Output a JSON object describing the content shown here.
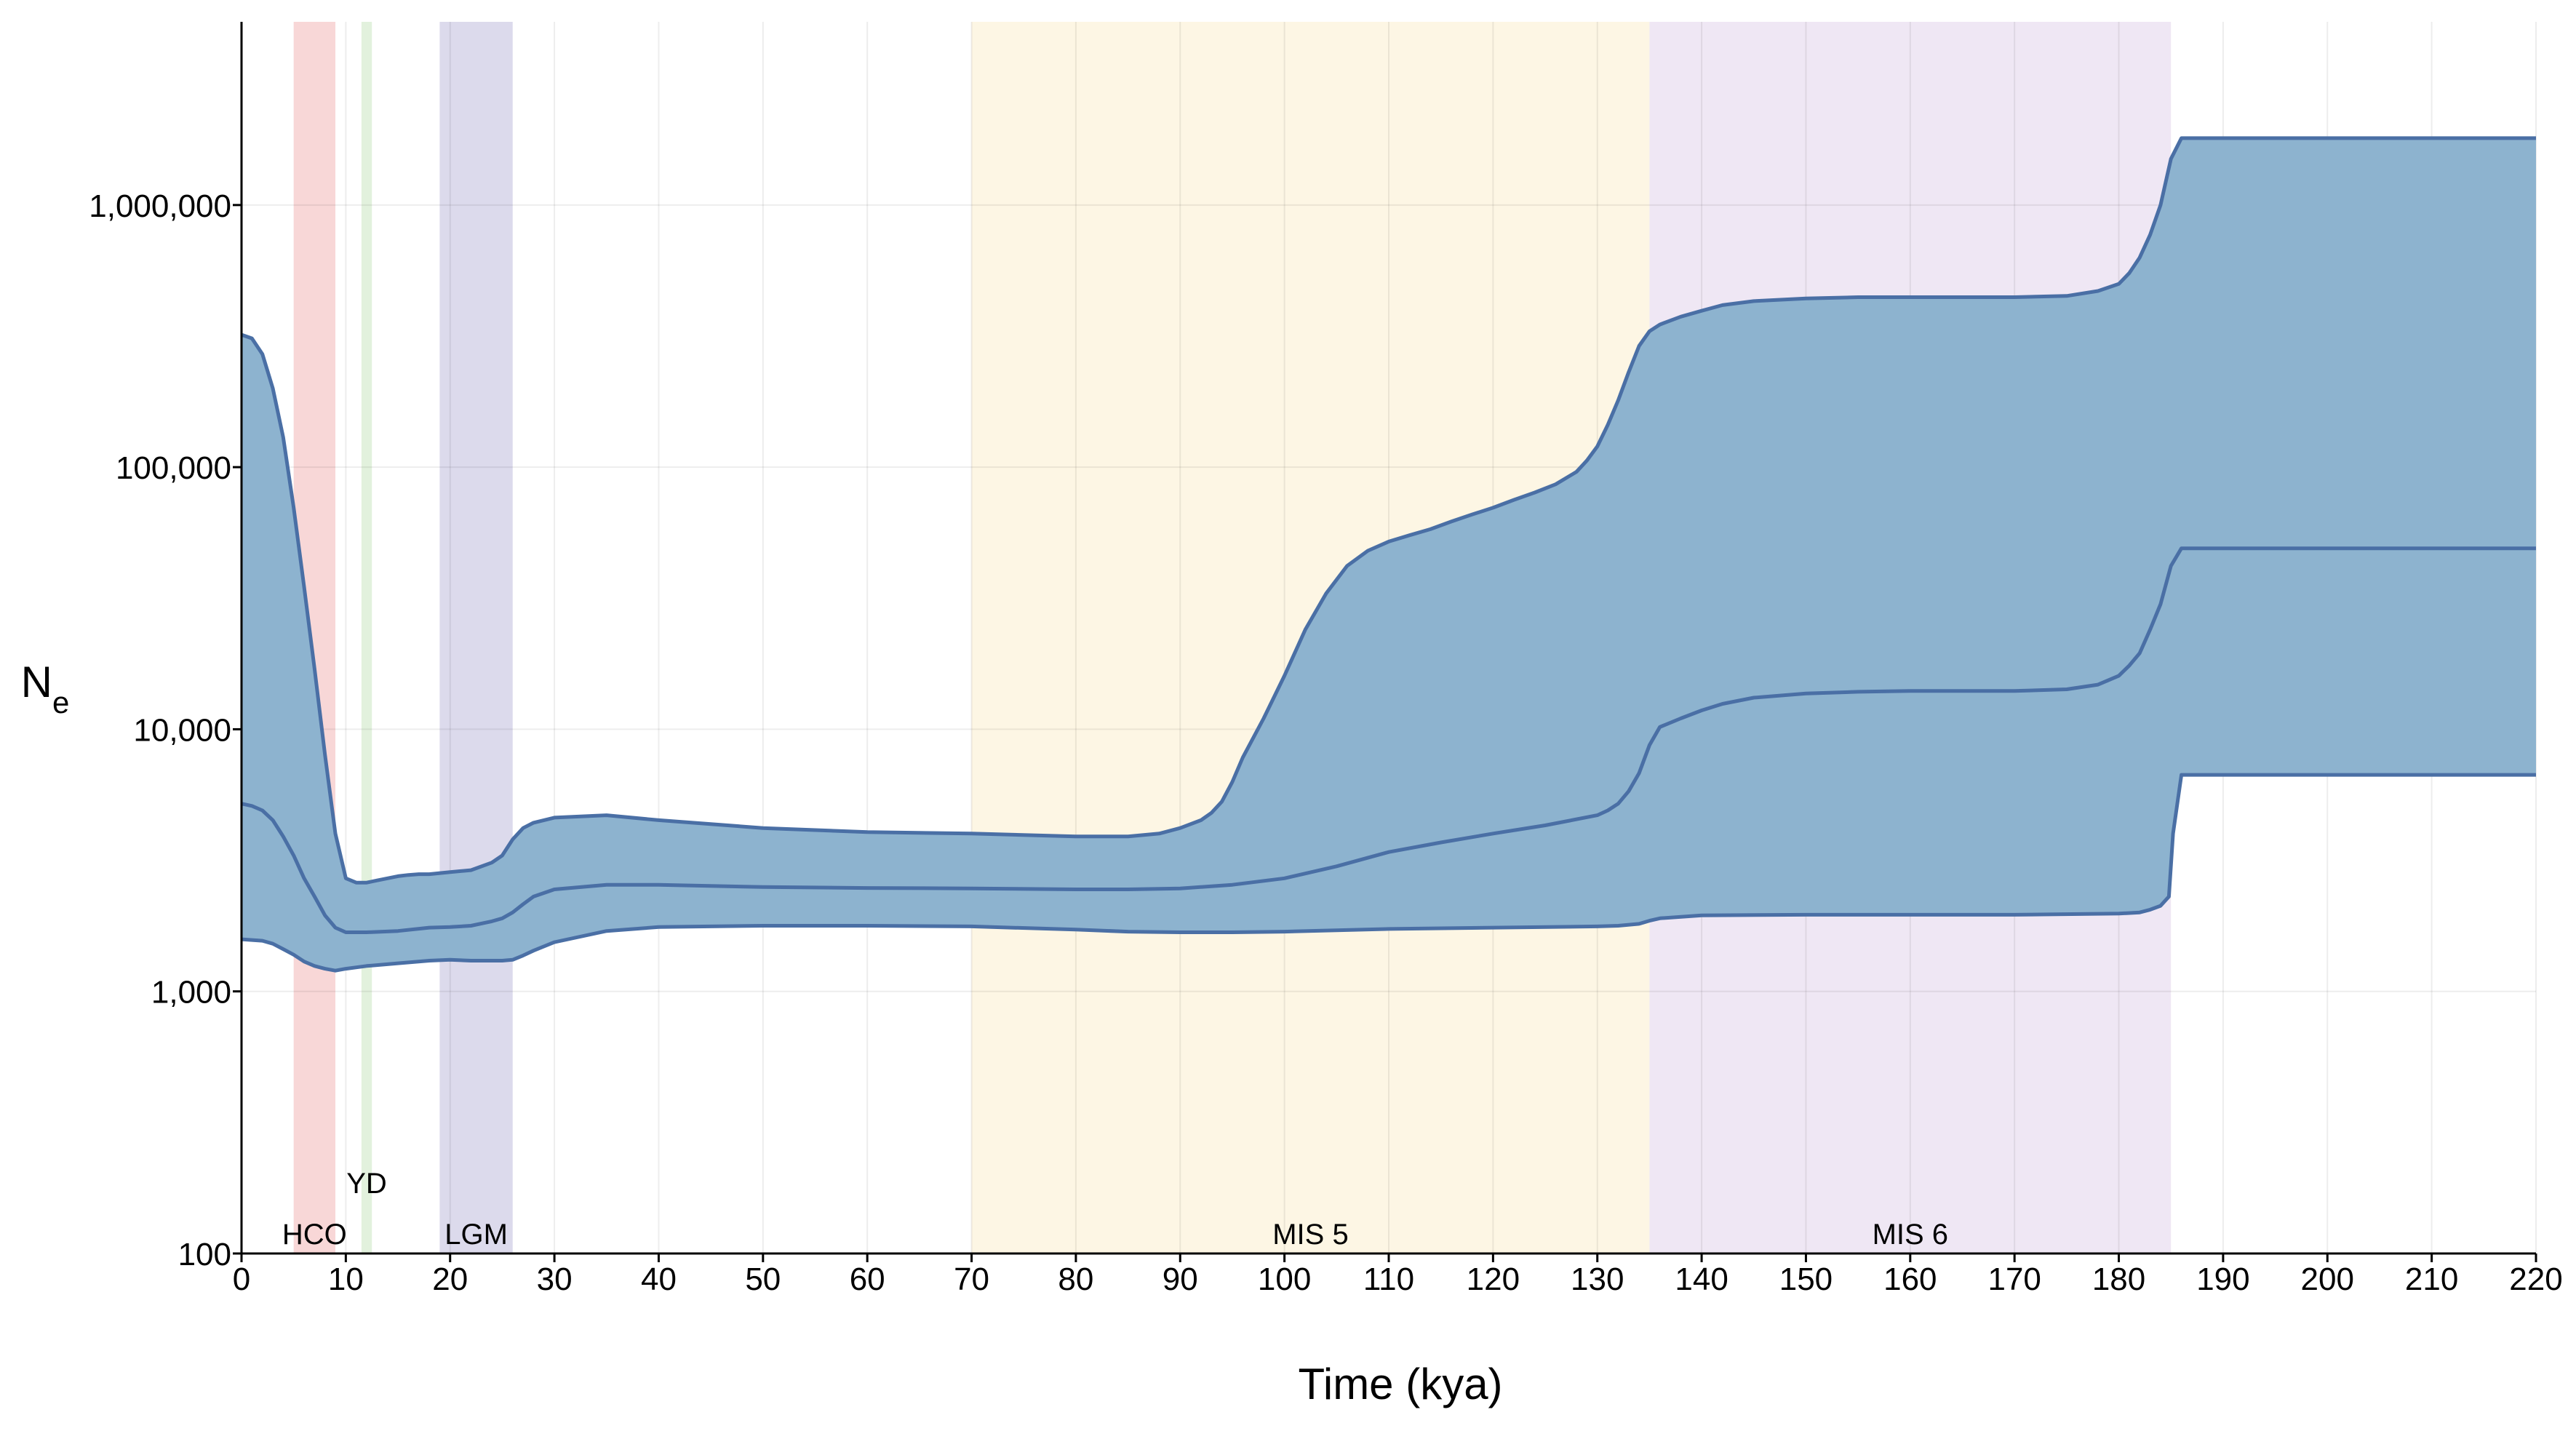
{
  "chart_data": {
    "type": "area",
    "title": "",
    "xlabel": "Time (kya)",
    "ylabel": {
      "main": "N",
      "sub": "e"
    },
    "xlim": [
      0,
      220
    ],
    "ylim": [
      100,
      5000000
    ],
    "yscale": "log",
    "grid": true,
    "x_ticks": [
      0,
      10,
      20,
      30,
      40,
      50,
      60,
      70,
      80,
      90,
      100,
      110,
      120,
      130,
      140,
      150,
      160,
      170,
      180,
      190,
      200,
      210,
      220
    ],
    "x_tick_labels": [
      "0",
      "10",
      "20",
      "30",
      "40",
      "50",
      "60",
      "70",
      "80",
      "90",
      "100",
      "110",
      "120",
      "130",
      "140",
      "150",
      "160",
      "170",
      "180",
      "190",
      "200",
      "210",
      "220"
    ],
    "y_ticks": [
      100,
      1000,
      10000,
      100000,
      1000000
    ],
    "y_tick_labels": [
      "100",
      "1,000",
      "10,000",
      "100,000",
      "1,000,000"
    ],
    "periods": [
      {
        "name": "HCO",
        "start": 5,
        "end": 9,
        "color": "#f8d7d7"
      },
      {
        "name": "YD",
        "start": 11.5,
        "end": 12.5,
        "color": "#e2f1dd"
      },
      {
        "name": "LGM",
        "start": 19,
        "end": 26,
        "color": "#dcdaec"
      },
      {
        "name": "MIS 5",
        "start": 70,
        "end": 135,
        "color": "#fdf6e4"
      },
      {
        "name": "MIS 6",
        "start": 135,
        "end": 185,
        "color": "#efe7f4"
      }
    ],
    "series": [
      {
        "role": "upper",
        "x": [
          0,
          1,
          2,
          3,
          4,
          5,
          6,
          7,
          8,
          9,
          10,
          11,
          12,
          13,
          14,
          15,
          16,
          17,
          18,
          20,
          22,
          24,
          25,
          26,
          27,
          28,
          30,
          35,
          40,
          50,
          60,
          70,
          80,
          85,
          88,
          90,
          92,
          93,
          94,
          95,
          96,
          98,
          100,
          102,
          104,
          106,
          108,
          110,
          112,
          114,
          116,
          118,
          120,
          122,
          124,
          126,
          128,
          129,
          130,
          131,
          132,
          133,
          134,
          135,
          136,
          138,
          140,
          142,
          145,
          150,
          155,
          160,
          165,
          170,
          175,
          178,
          180,
          181,
          182,
          183,
          184,
          185,
          186,
          190,
          200,
          210,
          220
        ],
        "y": [
          320000,
          310000,
          270000,
          200000,
          130000,
          70000,
          35000,
          17000,
          8000,
          4000,
          2700,
          2600,
          2600,
          2650,
          2700,
          2750,
          2780,
          2800,
          2800,
          2850,
          2900,
          3100,
          3300,
          3800,
          4200,
          4400,
          4600,
          4700,
          4500,
          4200,
          4050,
          4000,
          3900,
          3900,
          4000,
          4200,
          4500,
          4800,
          5300,
          6300,
          7800,
          11000,
          16000,
          24000,
          33000,
          42000,
          48000,
          52000,
          55000,
          58000,
          62000,
          66000,
          70000,
          75000,
          80000,
          86000,
          96000,
          106000,
          120000,
          145000,
          180000,
          230000,
          290000,
          330000,
          350000,
          375000,
          395000,
          415000,
          430000,
          440000,
          445000,
          445000,
          445000,
          445000,
          450000,
          470000,
          500000,
          550000,
          630000,
          770000,
          1000000,
          1500000,
          1800000,
          1800000,
          1800000,
          1800000,
          1800000
        ]
      },
      {
        "role": "median",
        "x": [
          0,
          1,
          2,
          3,
          4,
          5,
          6,
          7,
          8,
          9,
          10,
          12,
          15,
          18,
          20,
          22,
          24,
          25,
          26,
          27,
          28,
          30,
          35,
          40,
          50,
          60,
          70,
          80,
          85,
          90,
          95,
          100,
          105,
          110,
          115,
          120,
          125,
          130,
          131,
          132,
          133,
          134,
          135,
          136,
          138,
          140,
          142,
          145,
          150,
          155,
          160,
          165,
          170,
          175,
          178,
          180,
          181,
          182,
          183,
          184,
          185,
          186,
          190,
          200,
          210,
          220
        ],
        "y": [
          5200,
          5100,
          4900,
          4500,
          3900,
          3300,
          2700,
          2300,
          1950,
          1750,
          1680,
          1680,
          1700,
          1750,
          1760,
          1780,
          1850,
          1900,
          2000,
          2150,
          2300,
          2450,
          2550,
          2550,
          2500,
          2480,
          2470,
          2450,
          2450,
          2470,
          2550,
          2700,
          3000,
          3400,
          3700,
          4000,
          4300,
          4700,
          4900,
          5200,
          5800,
          6800,
          8700,
          10200,
          11000,
          11800,
          12500,
          13200,
          13700,
          13900,
          14000,
          14000,
          14000,
          14200,
          14800,
          16000,
          17500,
          19500,
          24000,
          30000,
          42000,
          49000,
          49000,
          49000,
          49000,
          49000
        ]
      },
      {
        "role": "lower",
        "x": [
          0,
          2,
          3,
          4,
          5,
          6,
          7,
          8,
          9,
          10,
          12,
          15,
          18,
          20,
          22,
          24,
          25,
          26,
          27,
          28,
          30,
          35,
          40,
          50,
          60,
          70,
          80,
          85,
          90,
          95,
          100,
          110,
          120,
          130,
          132,
          134,
          135,
          136,
          140,
          150,
          160,
          170,
          180,
          182,
          183,
          184,
          184.8,
          185.2,
          186,
          190,
          200,
          210,
          220
        ],
        "y": [
          1580,
          1560,
          1520,
          1450,
          1380,
          1300,
          1250,
          1220,
          1200,
          1220,
          1250,
          1280,
          1310,
          1320,
          1310,
          1310,
          1310,
          1320,
          1370,
          1430,
          1540,
          1700,
          1760,
          1780,
          1780,
          1770,
          1720,
          1690,
          1680,
          1680,
          1690,
          1730,
          1750,
          1770,
          1780,
          1810,
          1860,
          1900,
          1950,
          1960,
          1960,
          1960,
          1980,
          2000,
          2050,
          2120,
          2300,
          4000,
          6700,
          6700,
          6700,
          6700,
          6700
        ]
      }
    ],
    "fill_color": "#8db3cf",
    "line_color": "#4a6fa5"
  }
}
